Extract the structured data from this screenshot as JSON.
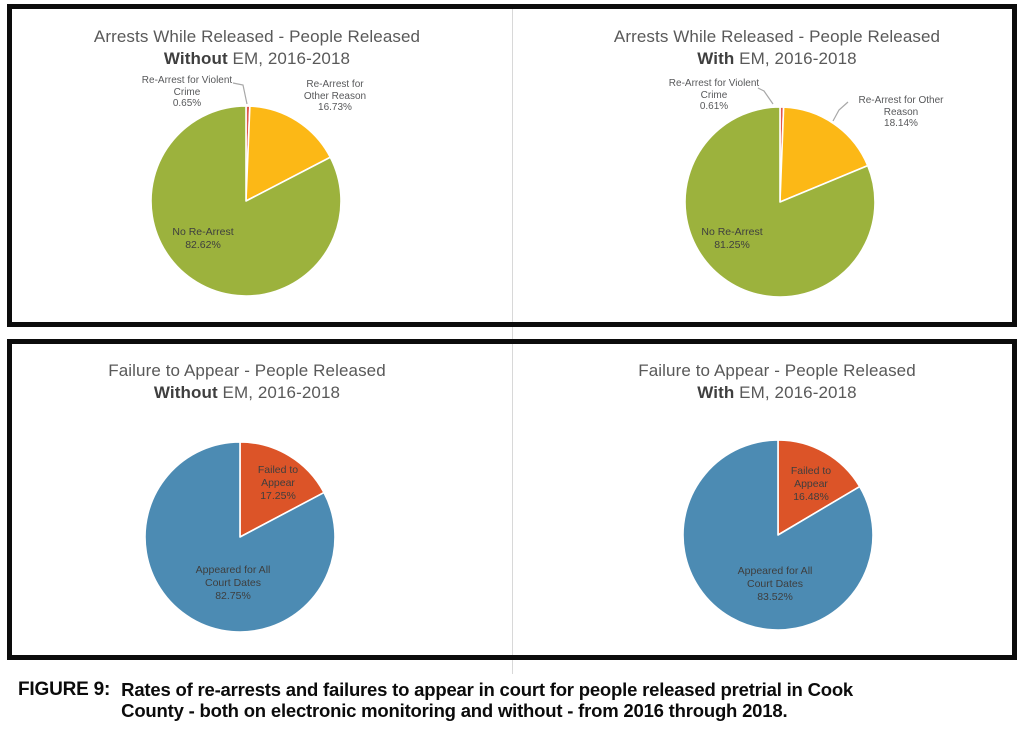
{
  "figure": {
    "label": "FIGURE 9:",
    "caption_lines": [
      "Rates of re-arrests and failures to appear in court for people released pretrial in Cook",
      "County - both on electronic monitoring and without - from 2016 through 2018."
    ]
  },
  "colors": {
    "no_rearrest_green": "#9cb23d",
    "rearrest_other_yellow": "#fcb816",
    "rearrest_violent_red": "#e1564a",
    "appeared_blue": "#4c8bb3",
    "failed_orange": "#dc5428",
    "panel_border": "#0c0c0c",
    "title_gray": "#595959",
    "leader_gray": "#a8a8a8"
  },
  "chart_data": [
    {
      "type": "pie",
      "title": {
        "line1": "Arrests While Released - People Released",
        "bold": "Without",
        "rest": " EM, 2016-2018"
      },
      "slices": [
        {
          "id": "violent",
          "label": "Re-Arrest for Violent Crime",
          "value": 0.65,
          "display": "0.65%",
          "color": "#e1564a"
        },
        {
          "id": "other",
          "label": "Re-Arrest for Other Reason",
          "value": 16.73,
          "display": "16.73%",
          "color": "#fcb816"
        },
        {
          "id": "none",
          "label": "No Re-Arrest",
          "value": 82.62,
          "display": "82.62%",
          "color": "#9cb23d"
        }
      ],
      "labels": {
        "violent": {
          "l1": "Re-Arrest for Violent",
          "l2": "Crime",
          "l3": "0.65%"
        },
        "other": {
          "l1": "Re-Arrest for",
          "l2": "Other Reason",
          "l3": "16.73%"
        },
        "none": {
          "l1": "No Re-Arrest",
          "l2": "82.62%"
        }
      },
      "start_angle_deg": 0,
      "direction": "clockwise",
      "legend": "none"
    },
    {
      "type": "pie",
      "title": {
        "line1": "Arrests While Released - People Released",
        "bold": "With",
        "rest": " EM, 2016-2018"
      },
      "slices": [
        {
          "id": "violent",
          "label": "Re-Arrest for Violent Crime",
          "value": 0.61,
          "display": "0.61%",
          "color": "#e1564a"
        },
        {
          "id": "other",
          "label": "Re-Arrest for Other Reason",
          "value": 18.14,
          "display": "18.14%",
          "color": "#fcb816"
        },
        {
          "id": "none",
          "label": "No Re-Arrest",
          "value": 81.25,
          "display": "81.25%",
          "color": "#9cb23d"
        }
      ],
      "labels": {
        "violent": {
          "l1": "Re-Arrest for Violent",
          "l2": "Crime",
          "l3": "0.61%"
        },
        "other": {
          "l1": "Re-Arrest for Other",
          "l2": "Reason",
          "l3": "18.14%"
        },
        "none": {
          "l1": "No Re-Arrest",
          "l2": "81.25%"
        }
      },
      "start_angle_deg": 0,
      "direction": "clockwise",
      "legend": "none"
    },
    {
      "type": "pie",
      "title": {
        "line1": "Failure to Appear - People Released",
        "bold": "Without",
        "rest": " EM, 2016-2018"
      },
      "slices": [
        {
          "id": "failed",
          "label": "Failed to Appear",
          "value": 17.25,
          "display": "17.25%",
          "color": "#dc5428"
        },
        {
          "id": "appeared",
          "label": "Appeared for All Court Dates",
          "value": 82.75,
          "display": "82.75%",
          "color": "#4c8bb3"
        }
      ],
      "labels": {
        "failed": {
          "l1": "Failed to",
          "l2": "Appear",
          "l3": "17.25%"
        },
        "appeared": {
          "l1": "Appeared for All",
          "l2": "Court Dates",
          "l3": "82.75%"
        }
      },
      "start_angle_deg": 0,
      "direction": "clockwise",
      "legend": "none"
    },
    {
      "type": "pie",
      "title": {
        "line1": "Failure to Appear - People Released",
        "bold": "With",
        "rest": " EM, 2016-2018"
      },
      "slices": [
        {
          "id": "failed",
          "label": "Failed to Appear",
          "value": 16.48,
          "display": "16.48%",
          "color": "#dc5428"
        },
        {
          "id": "appeared",
          "label": "Appeared for All Court Dates",
          "value": 83.52,
          "display": "83.52%",
          "color": "#4c8bb3"
        }
      ],
      "labels": {
        "failed": {
          "l1": "Failed to",
          "l2": "Appear",
          "l3": "16.48%"
        },
        "appeared": {
          "l1": "Appeared for All",
          "l2": "Court Dates",
          "l3": "83.52%"
        }
      },
      "start_angle_deg": 0,
      "direction": "clockwise",
      "legend": "none"
    }
  ]
}
